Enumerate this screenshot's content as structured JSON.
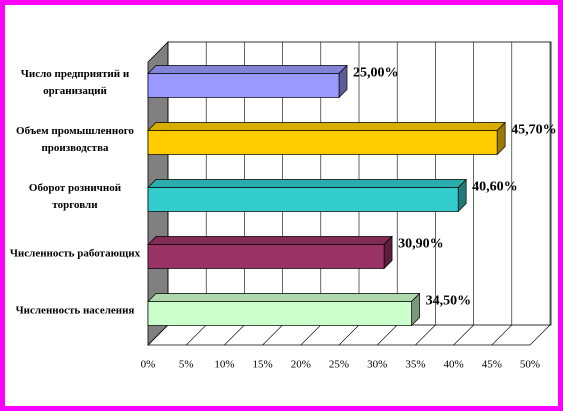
{
  "chart_data": {
    "type": "bar3d-horizontal",
    "categories": [
      "Число предприятий и организаций",
      "Объем промышленного производства",
      "Оборот розничной торговли",
      "Численность работающих",
      "Численность населения"
    ],
    "values": [
      25,
      45.7,
      40.6,
      30.9,
      34.5
    ],
    "value_labels": [
      "25,00%",
      "45,70%",
      "40,60%",
      "30,90%",
      "34,50%"
    ],
    "colors": [
      "#9999ff",
      "#ffcc00",
      "#33cccc",
      "#993366",
      "#ccffcc"
    ],
    "xlim": [
      0,
      50
    ],
    "xticks": [
      {
        "value": 0,
        "label": "0%"
      },
      {
        "value": 5,
        "label": "5%"
      },
      {
        "value": 10,
        "label": "10%"
      },
      {
        "value": 15,
        "label": "15%"
      },
      {
        "value": 20,
        "label": "20%"
      },
      {
        "value": 25,
        "label": "25%"
      },
      {
        "value": 30,
        "label": "30%"
      },
      {
        "value": 35,
        "label": "35%"
      },
      {
        "value": 40,
        "label": "40%"
      },
      {
        "value": 45,
        "label": "45%"
      },
      {
        "value": 50,
        "label": "50%"
      }
    ],
    "grid": true
  }
}
